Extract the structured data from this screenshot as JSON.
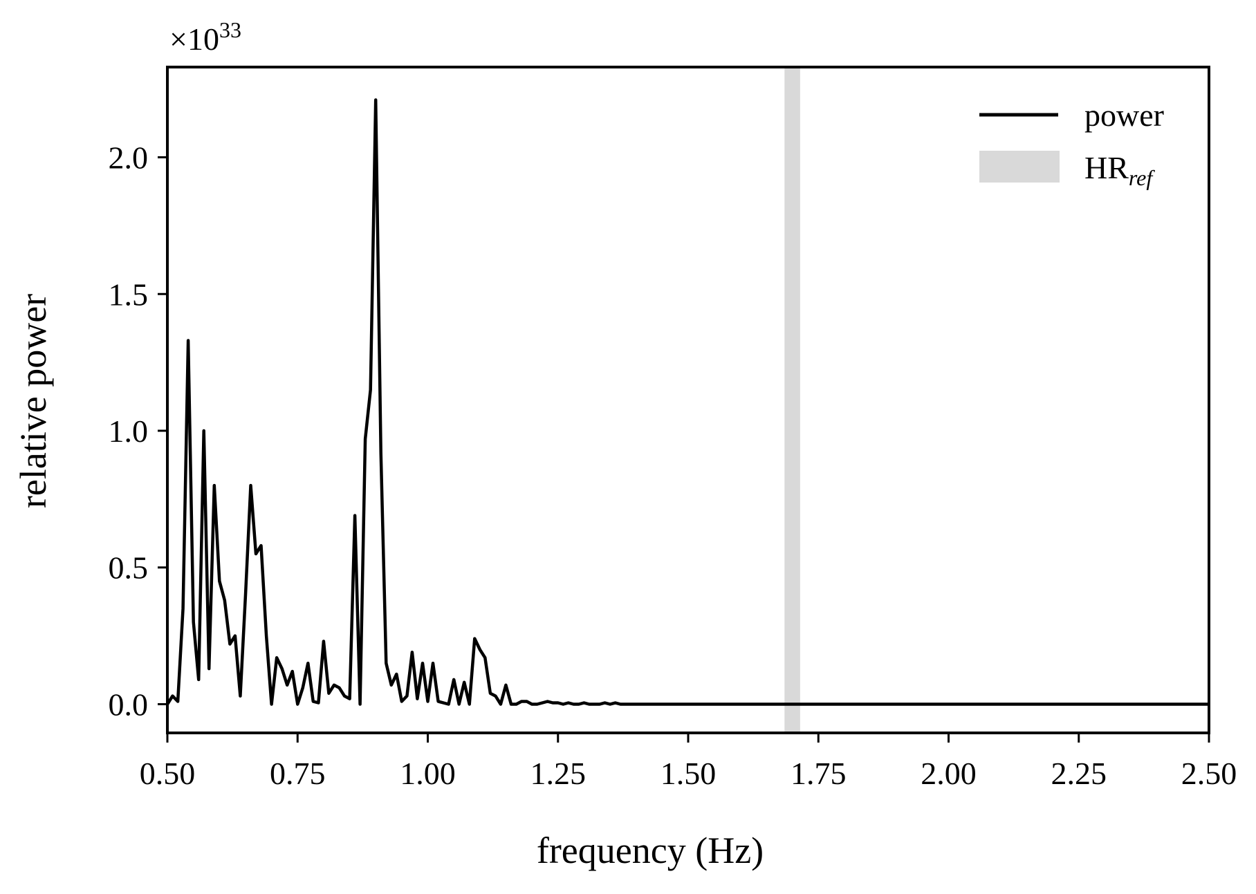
{
  "chart_data": {
    "type": "line",
    "xlabel": "frequency (Hz)",
    "ylabel": "relative power",
    "y_scale_note": "×10",
    "y_scale_exponent": "33",
    "xlim": [
      0.5,
      2.5
    ],
    "ylim": [
      -0.105,
      2.33
    ],
    "x_ticks": [
      0.5,
      0.75,
      1.0,
      1.25,
      1.5,
      1.75,
      2.0,
      2.25,
      2.5
    ],
    "x_tick_labels": [
      "0.50",
      "0.75",
      "1.00",
      "1.25",
      "1.50",
      "1.75",
      "2.00",
      "2.25",
      "2.50"
    ],
    "y_ticks": [
      0.0,
      0.5,
      1.0,
      1.5,
      2.0
    ],
    "y_tick_labels": [
      "0.0",
      "0.5",
      "1.0",
      "1.5",
      "2.0"
    ],
    "grid": false,
    "legend_position": "top-right",
    "series": [
      {
        "name": "power",
        "color": "#000000",
        "x": [
          0.5,
          0.51,
          0.52,
          0.53,
          0.54,
          0.55,
          0.56,
          0.57,
          0.58,
          0.59,
          0.6,
          0.61,
          0.62,
          0.63,
          0.64,
          0.65,
          0.66,
          0.67,
          0.68,
          0.69,
          0.7,
          0.71,
          0.72,
          0.73,
          0.74,
          0.75,
          0.76,
          0.77,
          0.78,
          0.79,
          0.8,
          0.81,
          0.82,
          0.83,
          0.84,
          0.85,
          0.86,
          0.87,
          0.88,
          0.89,
          0.9,
          0.91,
          0.92,
          0.93,
          0.94,
          0.95,
          0.96,
          0.97,
          0.98,
          0.99,
          1.0,
          1.01,
          1.02,
          1.03,
          1.04,
          1.05,
          1.06,
          1.07,
          1.08,
          1.09,
          1.1,
          1.11,
          1.12,
          1.13,
          1.14,
          1.15,
          1.16,
          1.17,
          1.18,
          1.19,
          1.2,
          1.21,
          1.22,
          1.23,
          1.24,
          1.25,
          1.26,
          1.27,
          1.28,
          1.29,
          1.3,
          1.31,
          1.32,
          1.33,
          1.34,
          1.35,
          1.36,
          1.37,
          1.4,
          1.6,
          1.8,
          2.0,
          2.2,
          2.4,
          2.5
        ],
        "values": [
          0.0,
          0.03,
          0.01,
          0.35,
          1.33,
          0.3,
          0.09,
          1.0,
          0.13,
          0.8,
          0.45,
          0.38,
          0.22,
          0.25,
          0.03,
          0.4,
          0.8,
          0.55,
          0.58,
          0.25,
          0.0,
          0.17,
          0.13,
          0.07,
          0.12,
          0.0,
          0.06,
          0.15,
          0.01,
          0.005,
          0.23,
          0.04,
          0.07,
          0.06,
          0.03,
          0.02,
          0.69,
          0.0,
          0.97,
          1.15,
          2.21,
          0.92,
          0.15,
          0.07,
          0.11,
          0.01,
          0.03,
          0.19,
          0.02,
          0.15,
          0.01,
          0.15,
          0.01,
          0.005,
          0.0,
          0.09,
          0.0,
          0.08,
          0.0,
          0.24,
          0.2,
          0.17,
          0.04,
          0.03,
          0.0,
          0.07,
          0.0,
          0.0,
          0.01,
          0.01,
          0.0,
          0.0,
          0.005,
          0.01,
          0.005,
          0.005,
          0.0,
          0.005,
          0.0,
          0.0,
          0.005,
          0.0,
          0.0,
          0.0,
          0.005,
          0.0,
          0.005,
          0.0,
          0.0,
          0.0,
          0.0,
          0.0,
          0.0,
          0.0,
          0.0
        ]
      }
    ],
    "band": {
      "name": "HR",
      "subscript": "ref",
      "color": "#d9d9d9",
      "x_range": [
        1.685,
        1.715
      ]
    }
  }
}
